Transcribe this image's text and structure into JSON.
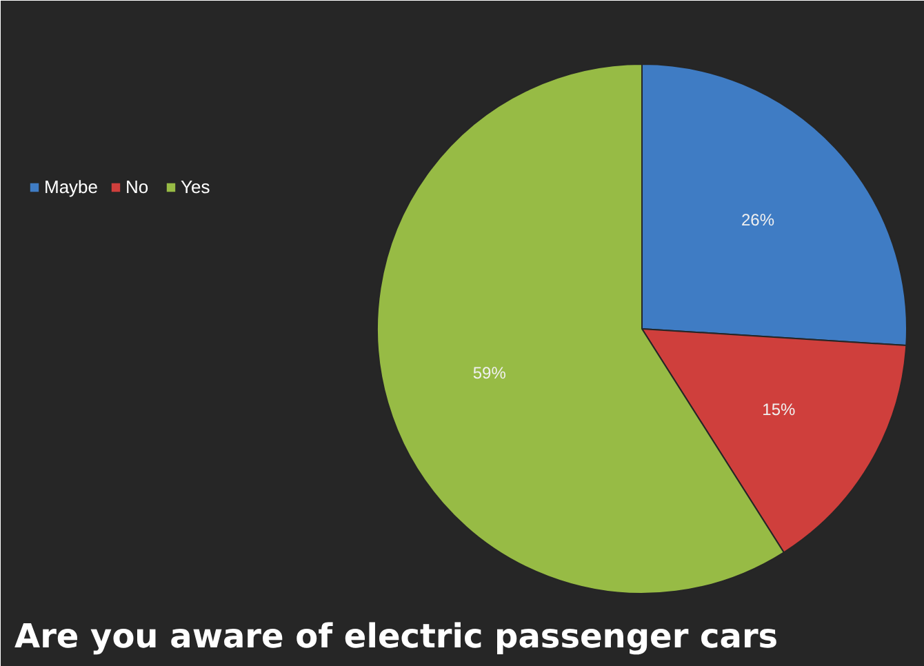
{
  "chart_data": {
    "type": "pie",
    "title": "Are you aware of electric passenger cars",
    "categories": [
      "Maybe",
      "No",
      "Yes"
    ],
    "values": [
      26,
      15,
      59
    ],
    "colors": [
      "#3f7cc4",
      "#cf3f3c",
      "#97bb45"
    ],
    "value_labels": [
      "26%",
      "15%",
      "59%"
    ],
    "legend": "left"
  }
}
